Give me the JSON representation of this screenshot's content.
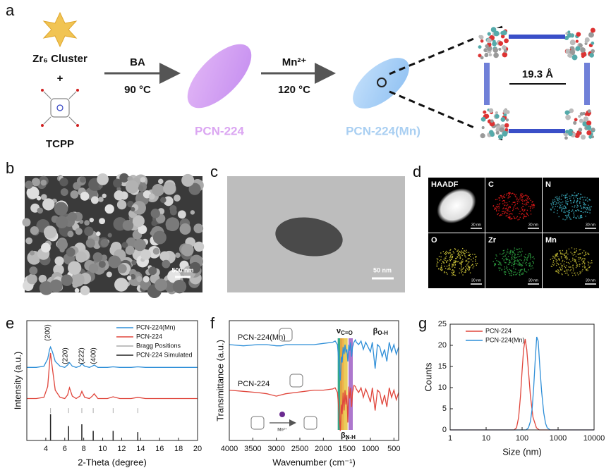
{
  "panel_a": {
    "letter": "a",
    "reactant1": "Zr₆ Cluster",
    "plus": "+",
    "reactant2": "TCPP",
    "step1_reagent": "BA",
    "step1_condition": "90 °C",
    "product1": "PCN-224",
    "step2_reagent": "Mn²⁺",
    "step2_condition": "120 °C",
    "product2": "PCN-224(Mn)",
    "pore_size": "19.3 Å"
  },
  "panel_b": {
    "letter": "b",
    "scale_bar": "500 nm"
  },
  "panel_c": {
    "letter": "c",
    "scale_bar": "50 nm"
  },
  "panel_d": {
    "letter": "d",
    "tiles": [
      {
        "label": "HAADF",
        "scale_bar": "30 nm",
        "color": "#ffffff"
      },
      {
        "label": "C",
        "scale_bar": "30 nm",
        "color": "#e01818"
      },
      {
        "label": "N",
        "scale_bar": "30 nm",
        "color": "#3aa6b8"
      },
      {
        "label": "O",
        "scale_bar": "30 nm",
        "color": "#d0c838"
      },
      {
        "label": "Zr",
        "scale_bar": "30 nm",
        "color": "#2ea040"
      },
      {
        "label": "Mn",
        "scale_bar": "30 nm",
        "color": "#b8b030"
      }
    ]
  },
  "chart_data": [
    {
      "letter": "e",
      "type": "line",
      "xlabel": "2-Theta (degree)",
      "ylabel": "Intensity (a.u.)",
      "xlim": [
        2,
        20
      ],
      "xticks": [
        4,
        6,
        8,
        10,
        12,
        14,
        16,
        18,
        20
      ],
      "ylim": [
        0,
        100
      ],
      "legend": "upper right",
      "annotations": [
        "(200)",
        "(220)",
        "(222)",
        "(400)"
      ],
      "series": [
        {
          "name": "PCN-224(Mn)",
          "color": "#2f8fd8",
          "x": [
            2,
            3,
            3.8,
            4.2,
            4.4,
            4.5,
            4.7,
            5,
            5.5,
            6,
            6.3,
            6.5,
            6.8,
            7.2,
            7.6,
            7.8,
            8.1,
            8.6,
            8.9,
            9.1,
            9.5,
            10.5,
            11.1,
            11.8,
            13,
            13.7,
            14.5,
            16,
            18,
            20
          ],
          "values": [
            61,
            61,
            62,
            68,
            76,
            78,
            74,
            66,
            62,
            61,
            63,
            65,
            62,
            61,
            62,
            64,
            62,
            61,
            62,
            63,
            61,
            61,
            61.5,
            61,
            61,
            61.5,
            61,
            61,
            61,
            61
          ]
        },
        {
          "name": "PCN-224",
          "color": "#e0463c",
          "x": [
            2,
            3,
            3.8,
            4.2,
            4.4,
            4.5,
            4.7,
            5,
            5.5,
            6,
            6.3,
            6.5,
            6.8,
            7.2,
            7.6,
            7.8,
            8.1,
            8.6,
            8.9,
            9.1,
            9.5,
            10.5,
            11.1,
            11.8,
            13,
            13.7,
            14.5,
            16,
            18,
            20
          ],
          "values": [
            35,
            35,
            36,
            45,
            65,
            73,
            60,
            42,
            36,
            35,
            38,
            44,
            37,
            35,
            37,
            41,
            36,
            35,
            37,
            39,
            35,
            35,
            36.5,
            35,
            35,
            36,
            35,
            35,
            35,
            35
          ]
        },
        {
          "name": "Bragg Positions",
          "color": "#aaaaaa",
          "style": "tick",
          "x": [
            4.5,
            6.4,
            7.8,
            9.0,
            11.1,
            13.7
          ],
          "values": [
            27,
            27,
            27,
            27,
            27,
            27
          ]
        },
        {
          "name": "PCN-224 Simulated",
          "color": "#222222",
          "style": "stick",
          "x": [
            4.5,
            6.4,
            7.8,
            9.0,
            11.1,
            13.7
          ],
          "values": [
            22,
            12,
            13.5,
            8,
            8,
            7
          ]
        }
      ]
    },
    {
      "letter": "f",
      "type": "line",
      "xlabel": "Wavenumber (cm⁻¹)",
      "ylabel": "Transmittance (a.u.)",
      "xlim": [
        4000,
        400
      ],
      "xticks": [
        4000,
        3500,
        3000,
        2500,
        2000,
        1500,
        1000,
        500
      ],
      "ylim": [
        0,
        100
      ],
      "inset_reagent": "Mn²⁺",
      "bands": [
        {
          "x": 1650,
          "color": "#1fa07c"
        },
        {
          "x": 1600,
          "color": "#f0a43a"
        },
        {
          "x": 1530,
          "color": "#e8c84a"
        },
        {
          "x": 1420,
          "color": "#a468c8"
        }
      ],
      "annotations": [
        {
          "symbol": "ν",
          "subscript": "C=O"
        },
        {
          "symbol": "β",
          "subscript": "O-H"
        },
        {
          "symbol": "β",
          "subscript": "N-H"
        }
      ],
      "series": [
        {
          "name": "PCN-224(Mn)",
          "color": "#2f8fd8",
          "x": [
            4000,
            3700,
            3400,
            3200,
            3000,
            2900,
            2800,
            2600,
            2400,
            2200,
            2000,
            1800,
            1750,
            1700,
            1660,
            1640,
            1620,
            1600,
            1580,
            1560,
            1540,
            1520,
            1500,
            1480,
            1460,
            1440,
            1420,
            1400,
            1380,
            1350,
            1320,
            1300,
            1250,
            1200,
            1150,
            1100,
            1050,
            1000,
            960,
            900,
            850,
            800,
            750,
            700,
            650,
            600,
            550,
            500,
            450,
            400
          ],
          "values": [
            80,
            79,
            80,
            80,
            79,
            79,
            80,
            80,
            80,
            80,
            81,
            82,
            83,
            80,
            60,
            50,
            70,
            65,
            78,
            72,
            80,
            74,
            76,
            66,
            80,
            75,
            82,
            70,
            78,
            82,
            84,
            82,
            80,
            83,
            76,
            82,
            78,
            74,
            82,
            60,
            80,
            78,
            70,
            76,
            66,
            82,
            74,
            80,
            72,
            78
          ]
        },
        {
          "name": "PCN-224",
          "color": "#e0463c",
          "x": [
            4000,
            3700,
            3400,
            3200,
            3000,
            2900,
            2800,
            2600,
            2400,
            2200,
            2000,
            1800,
            1750,
            1700,
            1660,
            1640,
            1620,
            1600,
            1580,
            1560,
            1540,
            1520,
            1500,
            1480,
            1460,
            1440,
            1420,
            1400,
            1380,
            1350,
            1320,
            1300,
            1250,
            1200,
            1150,
            1100,
            1050,
            1000,
            960,
            900,
            850,
            800,
            750,
            700,
            650,
            600,
            550,
            500,
            450,
            400
          ],
          "values": [
            42,
            41,
            40,
            39,
            37,
            38,
            39,
            40,
            41,
            42,
            42,
            43,
            44,
            40,
            20,
            8,
            30,
            22,
            40,
            25,
            42,
            30,
            38,
            15,
            45,
            35,
            44,
            28,
            40,
            46,
            45,
            43,
            40,
            44,
            36,
            43,
            38,
            32,
            44,
            25,
            42,
            40,
            30,
            38,
            28,
            44,
            36,
            42,
            34,
            40
          ]
        }
      ]
    },
    {
      "letter": "g",
      "type": "line",
      "xlabel": "Size (nm)",
      "ylabel": "Counts",
      "xscale": "log",
      "xlim": [
        1,
        10000
      ],
      "xticks": [
        1,
        10,
        100,
        1000,
        10000
      ],
      "ylim": [
        0,
        25
      ],
      "yticks": [
        0,
        5,
        10,
        15,
        20,
        25
      ],
      "legend": "upper left",
      "series": [
        {
          "name": "PCN-224",
          "color": "#e0463c",
          "x": [
            1,
            10,
            60,
            70,
            80,
            90,
            100,
            110,
            122,
            135,
            150,
            170,
            200,
            250,
            300,
            400,
            1000,
            10000
          ],
          "values": [
            0,
            0,
            0,
            0.5,
            3,
            8,
            14,
            19,
            21.5,
            19,
            14,
            8,
            3,
            0.5,
            0,
            0,
            0,
            0
          ]
        },
        {
          "name": "PCN-224(Mn)",
          "color": "#2f8fd8",
          "x": [
            1,
            10,
            100,
            130,
            150,
            170,
            190,
            210,
            230,
            255,
            280,
            310,
            350,
            400,
            450,
            500,
            600,
            1000,
            10000
          ],
          "values": [
            0,
            0,
            0,
            0,
            0.5,
            2,
            5,
            10,
            16,
            22,
            21,
            15,
            9,
            4,
            1.5,
            0.5,
            0,
            0,
            0
          ]
        }
      ]
    }
  ]
}
